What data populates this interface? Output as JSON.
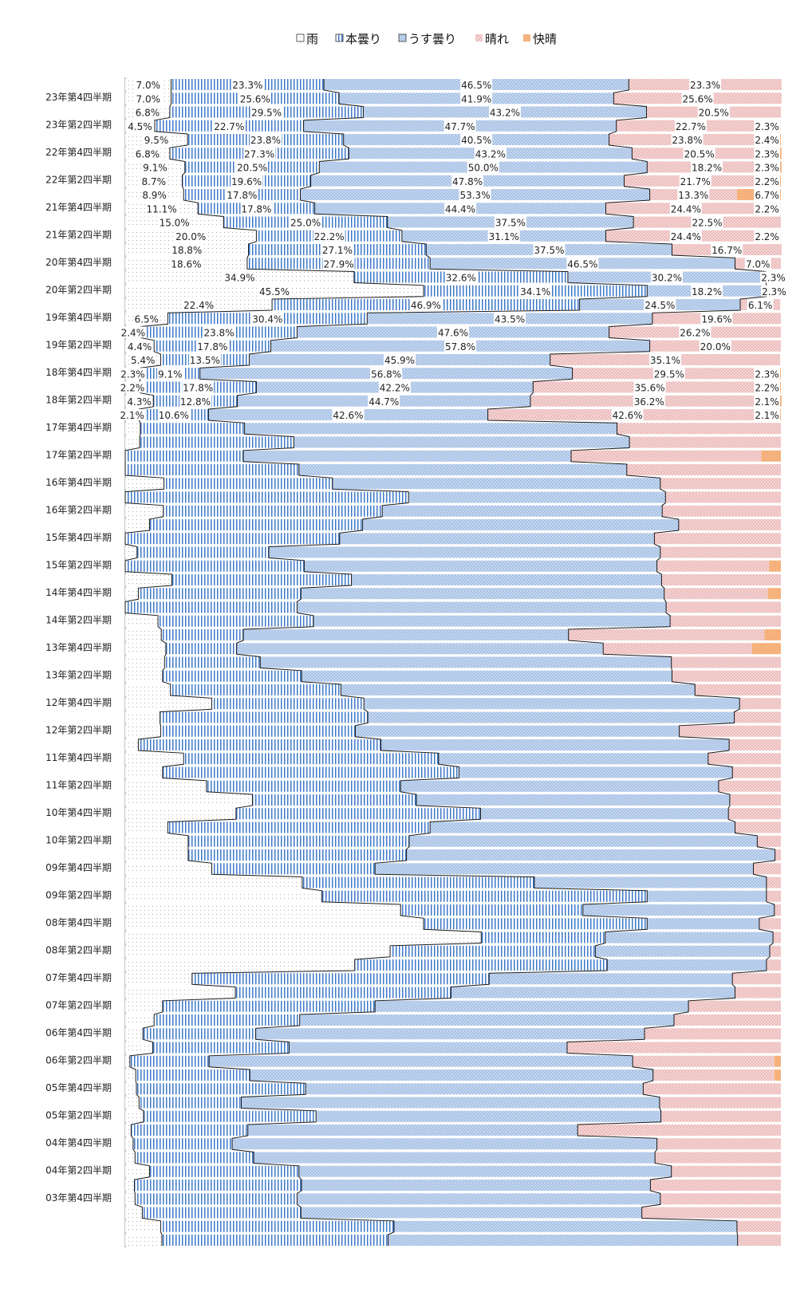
{
  "chart_data": {
    "type": "bar",
    "orientation": "horizontal",
    "stacked": "percent",
    "title": "",
    "xlabel": "",
    "ylabel": "",
    "xlim": [
      0,
      100
    ],
    "legend_position": "top",
    "grid": false,
    "series": [
      {
        "name": "雨",
        "color": "#ffffff",
        "pattern": "dots-gray"
      },
      {
        "name": "本曇り",
        "color": "#3c78c8",
        "pattern": "vertical-lines"
      },
      {
        "name": "うす曇り",
        "color": "#a9c3e6",
        "pattern": "blue-dots"
      },
      {
        "name": "晴れ",
        "color": "#efbcbc",
        "pattern": "pink-dots"
      },
      {
        "name": "快晴",
        "color": "#f6b27c",
        "pattern": "solid"
      }
    ],
    "tick_labels": [
      "23年第4四半期",
      "23年第2四半期",
      "22年第4四半期",
      "22年第2四半期",
      "21年第4四半期",
      "21年第2四半期",
      "20年第4四半期",
      "20年第2四半期",
      "19年第4四半期",
      "19年第2四半期",
      "18年第4四半期",
      "18年第2四半期",
      "17年第4四半期",
      "17年第2四半期",
      "16年第4四半期",
      "16年第2四半期",
      "15年第4四半期",
      "15年第2四半期",
      "14年第4四半期",
      "14年第2四半期",
      "13年第4四半期",
      "13年第2四半期",
      "12年第4四半期",
      "12年第2四半期",
      "11年第4四半期",
      "11年第2四半期",
      "10年第4四半期",
      "10年第2四半期",
      "09年第4四半期",
      "09年第2四半期",
      "08年第4四半期",
      "08年第2四半期",
      "07年第4四半期",
      "07年第2四半期",
      "06年第4四半期",
      "06年第2四半期",
      "05年第4四半期",
      "05年第2四半期",
      "04年第4四半期",
      "04年第2四半期",
      "03年第4四半期"
    ],
    "rows_labeled": [
      [
        7.0,
        23.3,
        46.5,
        23.3,
        0.0
      ],
      [
        7.0,
        25.6,
        41.9,
        25.6,
        0.0
      ],
      [
        6.8,
        29.5,
        43.2,
        20.5,
        0.0
      ],
      [
        4.5,
        22.7,
        47.7,
        22.7,
        2.3
      ],
      [
        9.5,
        23.8,
        40.5,
        23.8,
        2.4
      ],
      [
        6.8,
        27.3,
        43.2,
        20.5,
        2.3
      ],
      [
        9.1,
        20.5,
        50.0,
        18.2,
        2.3
      ],
      [
        8.7,
        19.6,
        47.8,
        21.7,
        2.2
      ],
      [
        8.9,
        17.8,
        53.3,
        13.3,
        6.7
      ],
      [
        11.1,
        17.8,
        44.4,
        24.4,
        2.2
      ],
      [
        15.0,
        25.0,
        37.5,
        22.5,
        0.0
      ],
      [
        20.0,
        22.2,
        31.1,
        24.4,
        2.2
      ],
      [
        18.8,
        27.1,
        37.5,
        16.7,
        0.0
      ],
      [
        18.6,
        27.9,
        46.5,
        7.0,
        0.0
      ],
      [
        34.9,
        32.6,
        30.2,
        2.3,
        0.0
      ],
      [
        45.5,
        34.1,
        18.2,
        2.3,
        0.0
      ],
      [
        22.4,
        46.9,
        24.5,
        6.1,
        0.0
      ],
      [
        6.5,
        30.4,
        43.5,
        19.6,
        0.0
      ],
      [
        2.4,
        23.8,
        47.6,
        26.2,
        0.0
      ],
      [
        4.4,
        17.8,
        57.8,
        20.0,
        0.0
      ],
      [
        5.4,
        13.5,
        45.9,
        35.1,
        0.0
      ],
      [
        2.3,
        9.1,
        56.8,
        29.5,
        2.3
      ],
      [
        2.2,
        17.8,
        42.2,
        35.6,
        2.2
      ],
      [
        4.3,
        12.8,
        44.7,
        36.2,
        2.1
      ],
      [
        2.1,
        10.6,
        42.6,
        42.6,
        2.1
      ]
    ],
    "rows_unlabeled": [
      [
        2.3,
        15.9,
        56.8,
        25.0,
        0.0
      ],
      [
        2.2,
        23.5,
        51.2,
        23.1,
        0.0
      ],
      [
        0.0,
        18.0,
        50.0,
        29.0,
        3.0
      ],
      [
        0.0,
        26.5,
        50.0,
        23.5,
        0.0
      ],
      [
        5.9,
        25.7,
        50.0,
        18.4,
        0.0
      ],
      [
        0.0,
        43.2,
        39.2,
        17.6,
        0.0
      ],
      [
        5.8,
        33.4,
        42.7,
        18.1,
        0.0
      ],
      [
        3.7,
        32.5,
        48.2,
        15.6,
        0.0
      ],
      [
        0.0,
        32.7,
        48.0,
        19.3,
        0.0
      ],
      [
        1.8,
        20.1,
        59.7,
        18.4,
        0.0
      ],
      [
        0.0,
        27.3,
        53.8,
        17.1,
        1.8
      ],
      [
        7.1,
        27.4,
        47.3,
        18.2,
        0.0
      ],
      [
        2.0,
        24.8,
        55.4,
        15.8,
        2.0
      ],
      [
        0.0,
        26.2,
        56.3,
        17.5,
        0.0
      ],
      [
        5.0,
        23.7,
        54.4,
        16.9,
        0.0
      ],
      [
        5.5,
        12.5,
        49.6,
        29.9,
        2.5
      ],
      [
        6.2,
        10.8,
        55.9,
        22.7,
        4.4
      ],
      [
        6.0,
        14.6,
        62.7,
        16.7,
        0.0
      ],
      [
        5.7,
        21.2,
        56.5,
        16.6,
        0.0
      ],
      [
        6.9,
        26.0,
        54.0,
        13.1,
        0.0
      ],
      [
        13.2,
        23.2,
        57.3,
        6.3,
        0.0
      ],
      [
        5.3,
        31.7,
        55.9,
        7.1,
        0.0
      ],
      [
        5.4,
        29.7,
        49.4,
        15.5,
        0.0
      ],
      [
        2.0,
        37.0,
        53.1,
        7.9,
        0.0
      ],
      [
        8.9,
        38.9,
        41.1,
        11.1,
        0.0
      ],
      [
        5.7,
        45.2,
        41.7,
        7.4,
        0.0
      ],
      [
        12.4,
        29.6,
        48.5,
        9.5,
        0.0
      ],
      [
        19.4,
        25.0,
        47.8,
        7.8,
        0.0
      ],
      [
        16.9,
        37.3,
        37.8,
        8.0,
        0.0
      ],
      [
        6.5,
        40.0,
        46.5,
        7.0,
        0.0
      ],
      [
        9.6,
        33.7,
        53.1,
        3.6,
        0.0
      ],
      [
        9.6,
        33.3,
        56.2,
        0.9,
        0.0
      ],
      [
        13.2,
        24.9,
        57.7,
        4.2,
        0.0
      ],
      [
        27.0,
        35.4,
        35.4,
        2.2,
        0.0
      ],
      [
        30.0,
        49.6,
        18.2,
        2.2,
        0.0
      ],
      [
        42.0,
        27.8,
        29.2,
        1.0,
        0.0
      ],
      [
        45.5,
        34.1,
        17.1,
        3.3,
        0.0
      ],
      [
        54.3,
        18.9,
        25.6,
        1.2,
        0.0
      ],
      [
        40.4,
        31.3,
        26.6,
        1.7,
        0.0
      ],
      [
        35.0,
        38.5,
        24.3,
        2.2,
        0.0
      ],
      [
        10.2,
        45.3,
        37.1,
        7.4,
        0.0
      ],
      [
        16.8,
        32.9,
        43.3,
        7.0,
        0.0
      ],
      [
        5.7,
        32.4,
        47.8,
        14.1,
        0.0
      ],
      [
        4.4,
        22.2,
        57.1,
        16.3,
        0.0
      ],
      [
        2.7,
        17.2,
        59.3,
        20.8,
        0.0
      ],
      [
        4.2,
        20.8,
        42.4,
        32.6,
        0.0
      ],
      [
        0.7,
        12.1,
        64.6,
        21.6,
        1.0
      ],
      [
        1.6,
        17.4,
        61.5,
        18.5,
        1.0
      ],
      [
        1.7,
        25.8,
        51.5,
        21.0,
        0.0
      ],
      [
        2.1,
        15.6,
        63.8,
        18.5,
        0.0
      ],
      [
        2.8,
        26.3,
        52.6,
        18.3,
        0.0
      ],
      [
        0.9,
        17.8,
        50.3,
        31.0,
        0.0
      ],
      [
        1.2,
        15.1,
        64.8,
        18.9,
        0.0
      ],
      [
        1.5,
        18.1,
        61.2,
        19.2,
        0.0
      ],
      [
        3.7,
        22.8,
        56.8,
        16.7,
        0.0
      ],
      [
        1.4,
        25.5,
        53.2,
        19.9,
        0.0
      ],
      [
        1.5,
        24.7,
        55.4,
        18.4,
        0.0
      ],
      [
        2.6,
        24.2,
        52.0,
        21.2,
        0.0
      ],
      [
        5.4,
        35.6,
        52.3,
        6.7,
        0.0
      ],
      [
        5.6,
        34.5,
        53.3,
        6.6,
        0.0
      ]
    ]
  },
  "legend": {
    "items": [
      "雨",
      "本曇り",
      "うす曇り",
      "晴れ",
      "快晴"
    ]
  }
}
